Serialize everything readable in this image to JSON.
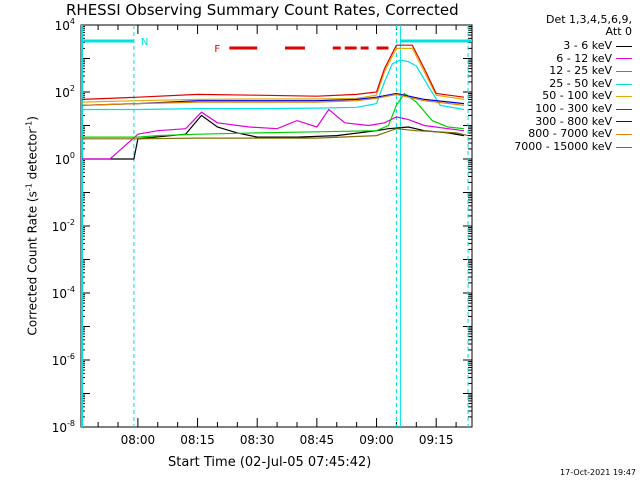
{
  "chart_data": {
    "type": "line",
    "title": "RHESSI Observing Summary Count Rates, Corrected",
    "xlabel": "Start Time (02-Jul-05 07:45:42)",
    "ylabel": "Corrected Count Rate (s-1 detector-1)",
    "ylabel_parts": [
      "Corrected Count Rate (s",
      "-1",
      " detector",
      "-1",
      ")"
    ],
    "x_ticks": [
      "08:00",
      "08:15",
      "08:30",
      "08:45",
      "09:00",
      "09:15"
    ],
    "y_ticks": [
      {
        "mantissa": "10",
        "exp": "4"
      },
      {
        "mantissa": "10",
        "exp": "2"
      },
      {
        "mantissa": "10",
        "exp": "0"
      },
      {
        "mantissa": "10",
        "exp": "-2"
      },
      {
        "mantissa": "10",
        "exp": "-4"
      },
      {
        "mantissa": "10",
        "exp": "-6"
      },
      {
        "mantissa": "10",
        "exp": "-8"
      }
    ],
    "y_log": true,
    "ylim": [
      "1e-8",
      "1e4"
    ],
    "xlim": [
      "07:45:42",
      "09:24:00"
    ],
    "grid": false,
    "legend_header": [
      "Det 1,3,4,5,6,9,",
      "Att 0"
    ],
    "legend_position": "right",
    "series": [
      {
        "name": "3 - 6 keV",
        "color": "#000000",
        "points": [
          [
            "07:46",
            1.0
          ],
          [
            "07:59",
            1.0
          ],
          [
            "08:00",
            4.0
          ],
          [
            "08:12",
            5.5
          ],
          [
            "08:16",
            20
          ],
          [
            "08:20",
            9
          ],
          [
            "08:25",
            6
          ],
          [
            "08:30",
            4.5
          ],
          [
            "08:40",
            4.5
          ],
          [
            "08:50",
            5
          ],
          [
            "09:00",
            7
          ],
          [
            "09:03",
            8
          ],
          [
            "09:08",
            9
          ],
          [
            "09:12",
            7
          ],
          [
            "09:18",
            6
          ],
          [
            "09:22",
            5
          ]
        ]
      },
      {
        "name": "6 - 12 keV",
        "color": "#e000e0",
        "points": [
          [
            "07:46",
            1.0
          ],
          [
            "07:53",
            1.0
          ],
          [
            "08:00",
            5.5
          ],
          [
            "08:05",
            7
          ],
          [
            "08:12",
            8
          ],
          [
            "08:16",
            25
          ],
          [
            "08:20",
            12
          ],
          [
            "08:28",
            9
          ],
          [
            "08:35",
            8
          ],
          [
            "08:40",
            14
          ],
          [
            "08:45",
            9
          ],
          [
            "08:48",
            30
          ],
          [
            "08:52",
            12
          ],
          [
            "08:58",
            10
          ],
          [
            "09:02",
            12
          ],
          [
            "09:05",
            18
          ],
          [
            "09:08",
            15
          ],
          [
            "09:12",
            10
          ],
          [
            "09:18",
            8
          ],
          [
            "09:22",
            7
          ]
        ]
      },
      {
        "name": "12 - 25 keV",
        "color": "#00d000",
        "points": [
          [
            "07:46",
            4.5
          ],
          [
            "08:00",
            4.5
          ],
          [
            "08:05",
            5
          ],
          [
            "08:15",
            5.5
          ],
          [
            "08:30",
            6
          ],
          [
            "08:45",
            6.5
          ],
          [
            "09:00",
            7
          ],
          [
            "09:03",
            10
          ],
          [
            "09:05",
            40
          ],
          [
            "09:07",
            90
          ],
          [
            "09:10",
            50
          ],
          [
            "09:14",
            14
          ],
          [
            "09:18",
            9
          ],
          [
            "09:22",
            8
          ]
        ]
      },
      {
        "name": "25 - 50 keV",
        "color": "#00e0e0",
        "points": [
          [
            "07:46",
            30
          ],
          [
            "08:00",
            30
          ],
          [
            "08:15",
            32
          ],
          [
            "08:30",
            32
          ],
          [
            "08:45",
            33
          ],
          [
            "08:55",
            35
          ],
          [
            "09:00",
            45
          ],
          [
            "09:02",
            200
          ],
          [
            "09:04",
            700
          ],
          [
            "09:06",
            900
          ],
          [
            "09:08",
            800
          ],
          [
            "09:10",
            600
          ],
          [
            "09:13",
            150
          ],
          [
            "09:16",
            40
          ],
          [
            "09:22",
            30
          ]
        ]
      },
      {
        "name": "50 - 100 keV",
        "color": "#e0b000",
        "points": [
          [
            "07:46",
            50
          ],
          [
            "08:00",
            55
          ],
          [
            "08:15",
            60
          ],
          [
            "08:30",
            62
          ],
          [
            "08:45",
            62
          ],
          [
            "08:55",
            65
          ],
          [
            "09:00",
            80
          ],
          [
            "09:02",
            400
          ],
          [
            "09:05",
            2000
          ],
          [
            "09:09",
            2000
          ],
          [
            "09:12",
            400
          ],
          [
            "09:15",
            80
          ],
          [
            "09:22",
            60
          ]
        ]
      },
      {
        "name": "100 - 300 keV",
        "color": "#e00000",
        "points": [
          [
            "07:46",
            60
          ],
          [
            "08:00",
            70
          ],
          [
            "08:15",
            85
          ],
          [
            "08:30",
            80
          ],
          [
            "08:45",
            75
          ],
          [
            "08:55",
            85
          ],
          [
            "09:00",
            100
          ],
          [
            "09:02",
            500
          ],
          [
            "09:05",
            2500
          ],
          [
            "09:09",
            2500
          ],
          [
            "09:12",
            500
          ],
          [
            "09:15",
            90
          ],
          [
            "09:22",
            70
          ]
        ]
      },
      {
        "name": "300 - 800 keV",
        "color": "#0000e0",
        "points": [
          [
            "07:46",
            40
          ],
          [
            "08:00",
            45
          ],
          [
            "08:15",
            55
          ],
          [
            "08:30",
            55
          ],
          [
            "08:45",
            55
          ],
          [
            "08:55",
            60
          ],
          [
            "09:00",
            70
          ],
          [
            "09:05",
            90
          ],
          [
            "09:12",
            60
          ],
          [
            "09:22",
            45
          ]
        ]
      },
      {
        "name": "800 - 7000 keV",
        "color": "#e08000",
        "points": [
          [
            "07:46",
            40
          ],
          [
            "08:00",
            45
          ],
          [
            "08:15",
            50
          ],
          [
            "08:30",
            50
          ],
          [
            "08:45",
            50
          ],
          [
            "08:55",
            55
          ],
          [
            "09:00",
            65
          ],
          [
            "09:05",
            85
          ],
          [
            "09:12",
            55
          ],
          [
            "09:22",
            40
          ]
        ]
      },
      {
        "name": "7000 - 15000 keV",
        "color": "#807000",
        "points": [
          [
            "07:46",
            4
          ],
          [
            "08:00",
            4
          ],
          [
            "08:15",
            4.2
          ],
          [
            "08:30",
            4.2
          ],
          [
            "08:45",
            4.2
          ],
          [
            "09:00",
            5
          ],
          [
            "09:05",
            8
          ],
          [
            "09:10",
            7
          ],
          [
            "09:20",
            6
          ],
          [
            "09:23",
            5
          ]
        ]
      }
    ],
    "annotations": {
      "night_marker": "N",
      "flare_marker": "F",
      "night_bars": [
        [
          "07:46",
          "07:59"
        ],
        [
          "09:06",
          "09:24"
        ]
      ],
      "flare_bars": [
        [
          "08:23",
          "08:30"
        ],
        [
          "08:37",
          "08:42"
        ],
        [
          "08:49",
          "08:51"
        ],
        [
          "08:52",
          "08:55"
        ],
        [
          "08:56",
          "08:58"
        ],
        [
          "09:00",
          "09:03"
        ]
      ],
      "night_lines": [
        "07:59",
        "09:05",
        "09:23"
      ],
      "saa_line": "09:06"
    }
  },
  "footer": {
    "stamp": "17-Oct-2021 19:47"
  }
}
